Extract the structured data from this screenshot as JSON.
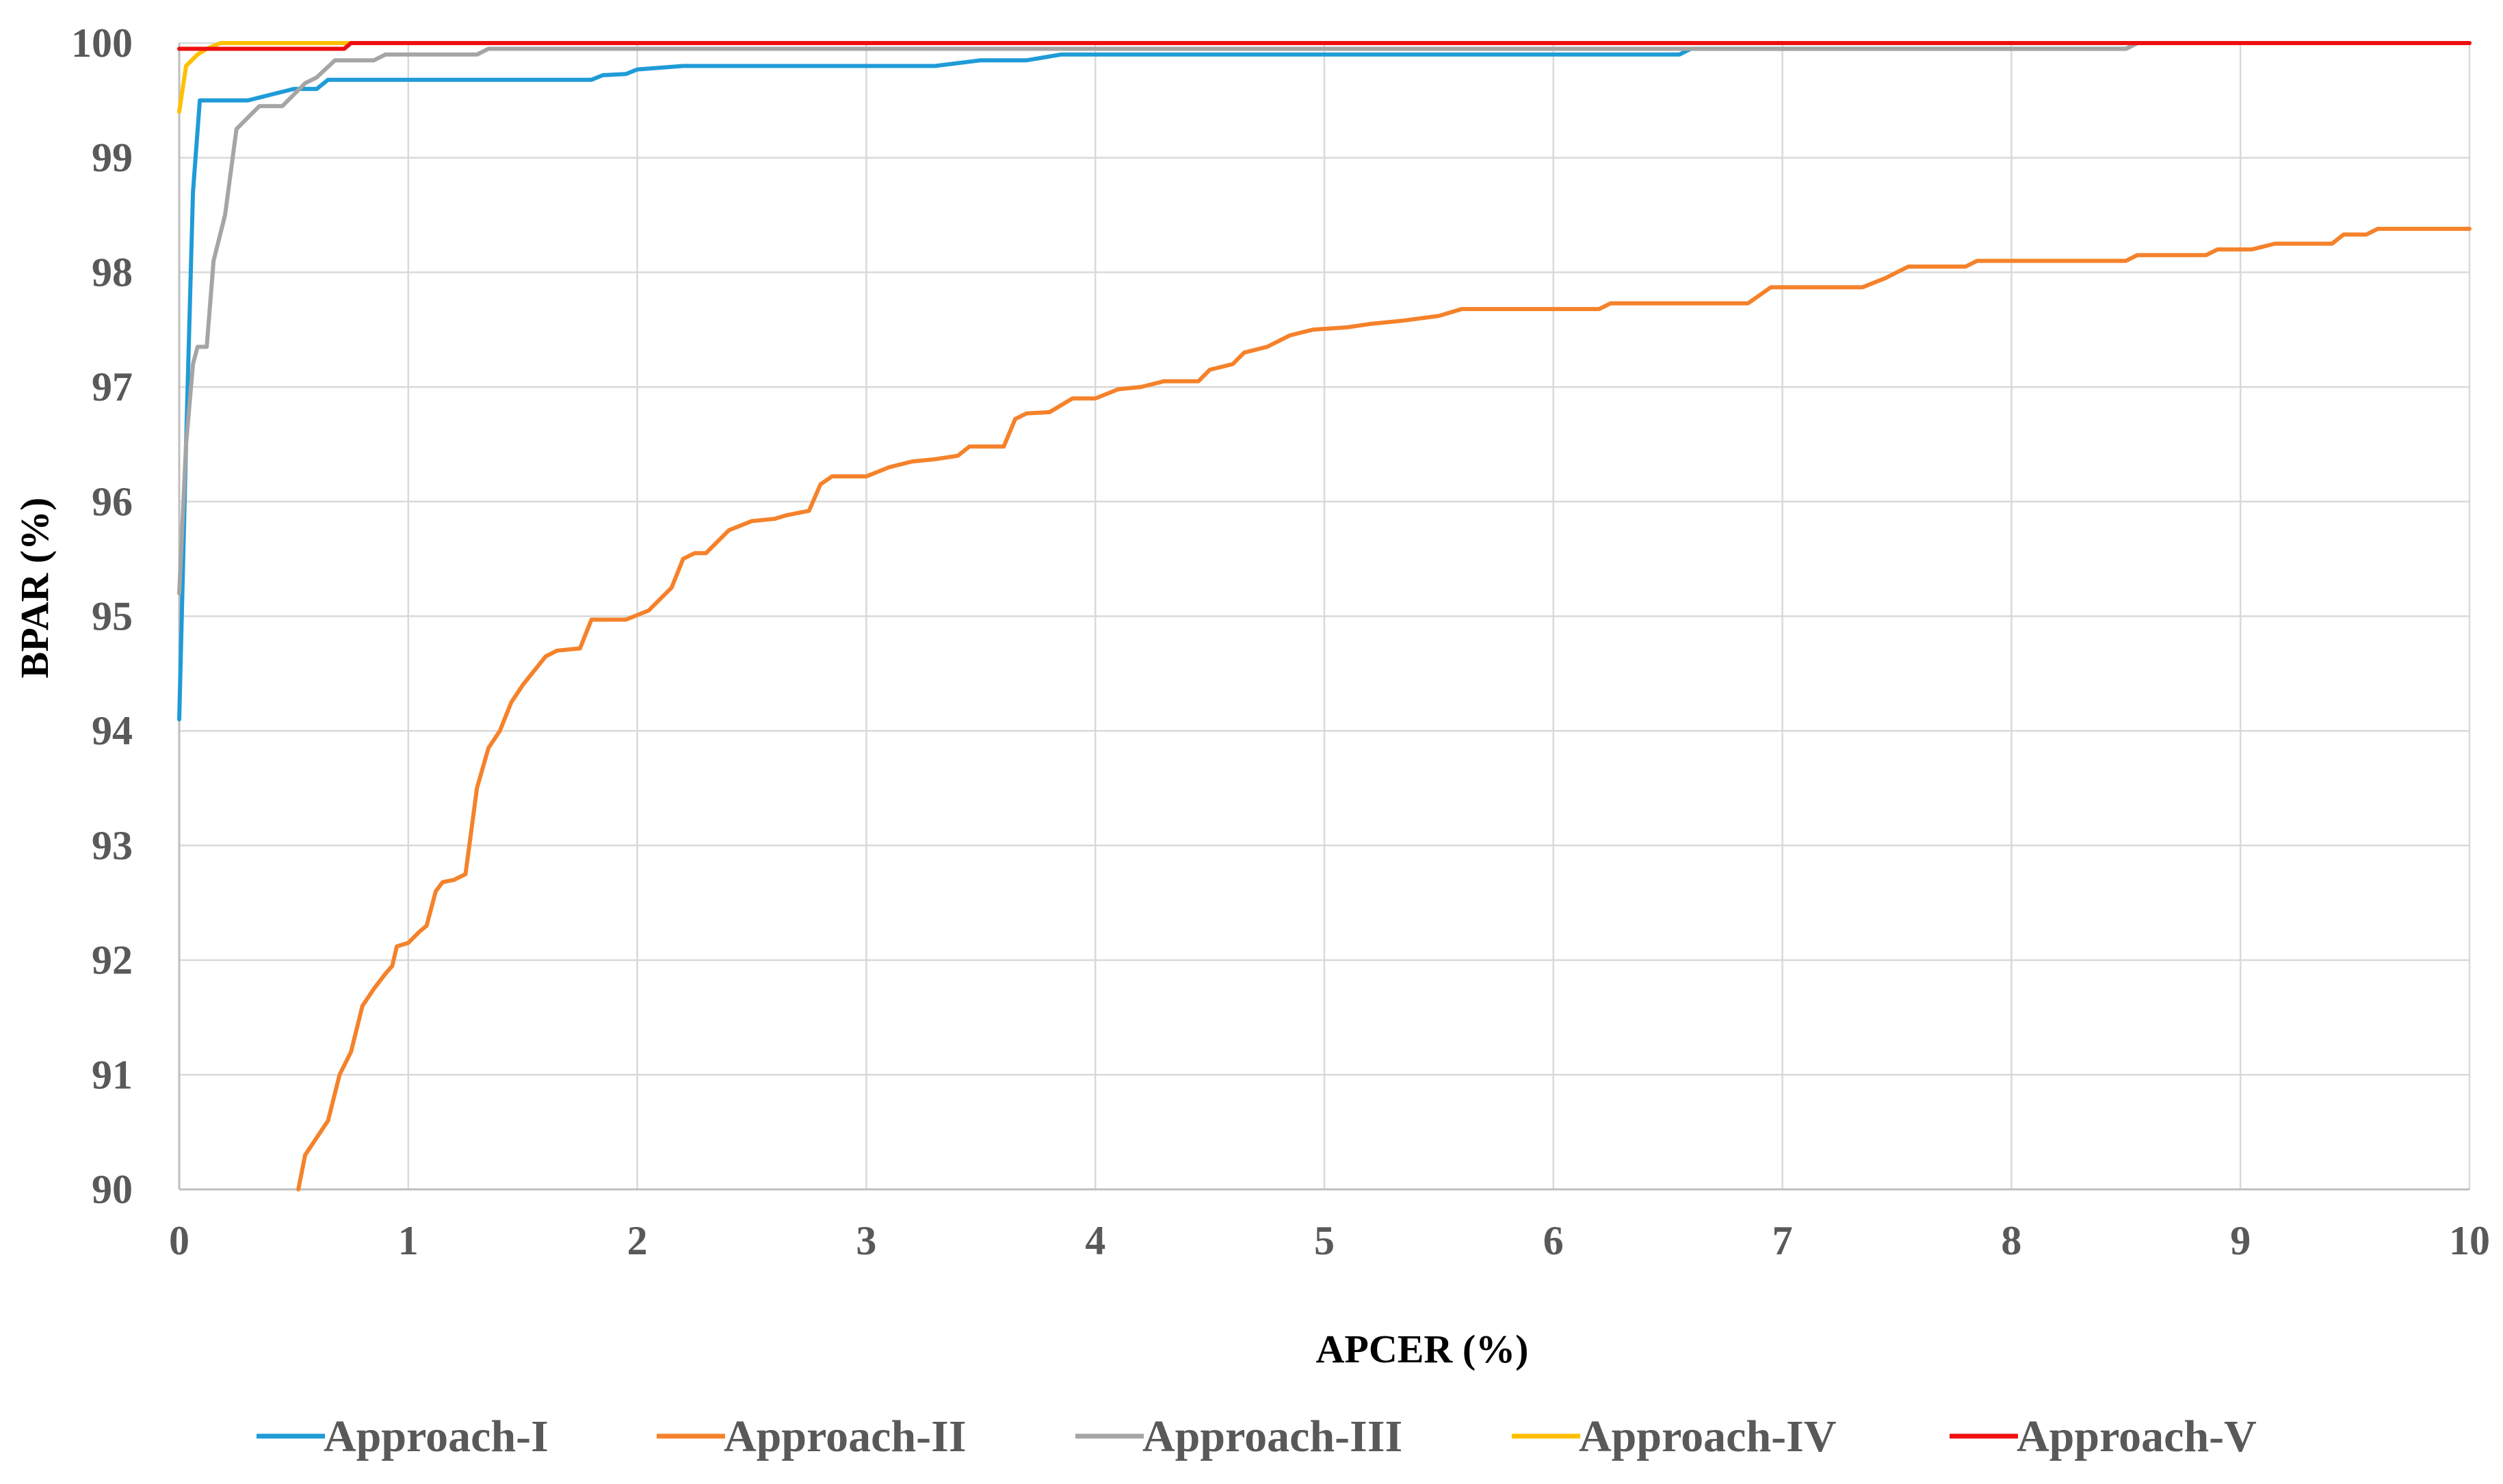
{
  "chart_data": {
    "type": "line",
    "title": "",
    "xlabel": "APCER (%)",
    "ylabel": "BPAR (%)",
    "xlim": [
      0,
      10
    ],
    "ylim": [
      90,
      100
    ],
    "x_ticks": [
      "0",
      "1",
      "2",
      "3",
      "4",
      "5",
      "6",
      "7",
      "8",
      "9",
      "10"
    ],
    "y_ticks": [
      "90",
      "91",
      "92",
      "93",
      "94",
      "95",
      "96",
      "97",
      "98",
      "99",
      "100"
    ],
    "grid": true,
    "legend_position": "bottom",
    "series": [
      {
        "name": "Approach-I",
        "color": "#1f9bd7",
        "points": [
          [
            0,
            94.1
          ],
          [
            0.03,
            96.5
          ],
          [
            0.06,
            98.7
          ],
          [
            0.09,
            99.5
          ],
          [
            0.3,
            99.5
          ],
          [
            0.4,
            99.55
          ],
          [
            0.5,
            99.6
          ],
          [
            0.6,
            99.6
          ],
          [
            0.65,
            99.68
          ],
          [
            1.8,
            99.68
          ],
          [
            1.85,
            99.72
          ],
          [
            1.95,
            99.73
          ],
          [
            2.0,
            99.77
          ],
          [
            2.2,
            99.8
          ],
          [
            3.3,
            99.8
          ],
          [
            3.5,
            99.85
          ],
          [
            3.7,
            99.85
          ],
          [
            3.85,
            99.9
          ],
          [
            6.55,
            99.9
          ],
          [
            6.6,
            99.95
          ],
          [
            8.5,
            99.95
          ],
          [
            8.55,
            100
          ],
          [
            10,
            100
          ]
        ]
      },
      {
        "name": "Approach-II",
        "color": "#f5822b",
        "points": [
          [
            0.52,
            90
          ],
          [
            0.55,
            90.3
          ],
          [
            0.65,
            90.6
          ],
          [
            0.7,
            91.0
          ],
          [
            0.75,
            91.2
          ],
          [
            0.8,
            91.6
          ],
          [
            0.85,
            91.75
          ],
          [
            0.9,
            91.88
          ],
          [
            0.93,
            91.95
          ],
          [
            0.95,
            92.12
          ],
          [
            1.0,
            92.15
          ],
          [
            1.05,
            92.25
          ],
          [
            1.08,
            92.3
          ],
          [
            1.12,
            92.6
          ],
          [
            1.15,
            92.68
          ],
          [
            1.2,
            92.7
          ],
          [
            1.25,
            92.75
          ],
          [
            1.3,
            93.5
          ],
          [
            1.35,
            93.85
          ],
          [
            1.4,
            94.0
          ],
          [
            1.45,
            94.25
          ],
          [
            1.5,
            94.4
          ],
          [
            1.6,
            94.65
          ],
          [
            1.65,
            94.7
          ],
          [
            1.75,
            94.72
          ],
          [
            1.8,
            94.97
          ],
          [
            1.95,
            94.97
          ],
          [
            2.05,
            95.05
          ],
          [
            2.15,
            95.25
          ],
          [
            2.2,
            95.5
          ],
          [
            2.25,
            95.55
          ],
          [
            2.3,
            95.55
          ],
          [
            2.4,
            95.75
          ],
          [
            2.5,
            95.83
          ],
          [
            2.6,
            95.85
          ],
          [
            2.65,
            95.88
          ],
          [
            2.75,
            95.92
          ],
          [
            2.8,
            96.15
          ],
          [
            2.85,
            96.22
          ],
          [
            3.0,
            96.22
          ],
          [
            3.1,
            96.3
          ],
          [
            3.2,
            96.35
          ],
          [
            3.3,
            96.37
          ],
          [
            3.4,
            96.4
          ],
          [
            3.45,
            96.48
          ],
          [
            3.6,
            96.48
          ],
          [
            3.65,
            96.72
          ],
          [
            3.7,
            96.77
          ],
          [
            3.8,
            96.78
          ],
          [
            3.9,
            96.9
          ],
          [
            4.0,
            96.9
          ],
          [
            4.1,
            96.98
          ],
          [
            4.2,
            97.0
          ],
          [
            4.3,
            97.05
          ],
          [
            4.45,
            97.05
          ],
          [
            4.5,
            97.15
          ],
          [
            4.6,
            97.2
          ],
          [
            4.65,
            97.3
          ],
          [
            4.75,
            97.35
          ],
          [
            4.85,
            97.45
          ],
          [
            4.95,
            97.5
          ],
          [
            5.1,
            97.52
          ],
          [
            5.2,
            97.55
          ],
          [
            5.35,
            97.58
          ],
          [
            5.5,
            97.62
          ],
          [
            5.6,
            97.68
          ],
          [
            6.2,
            97.68
          ],
          [
            6.25,
            97.73
          ],
          [
            6.85,
            97.73
          ],
          [
            6.95,
            97.87
          ],
          [
            7.35,
            97.87
          ],
          [
            7.45,
            97.95
          ],
          [
            7.55,
            98.05
          ],
          [
            7.8,
            98.05
          ],
          [
            7.85,
            98.1
          ],
          [
            8.5,
            98.1
          ],
          [
            8.55,
            98.15
          ],
          [
            8.85,
            98.15
          ],
          [
            8.9,
            98.2
          ],
          [
            9.05,
            98.2
          ],
          [
            9.15,
            98.25
          ],
          [
            9.4,
            98.25
          ],
          [
            9.45,
            98.33
          ],
          [
            9.55,
            98.33
          ],
          [
            9.6,
            98.38
          ],
          [
            10,
            98.38
          ]
        ]
      },
      {
        "name": "Approach-III",
        "color": "#a5a5a5",
        "points": [
          [
            0,
            95.2
          ],
          [
            0.03,
            96.5
          ],
          [
            0.06,
            97.2
          ],
          [
            0.08,
            97.35
          ],
          [
            0.12,
            97.35
          ],
          [
            0.15,
            98.1
          ],
          [
            0.2,
            98.5
          ],
          [
            0.25,
            99.25
          ],
          [
            0.3,
            99.35
          ],
          [
            0.35,
            99.45
          ],
          [
            0.45,
            99.45
          ],
          [
            0.5,
            99.55
          ],
          [
            0.55,
            99.65
          ],
          [
            0.6,
            99.7
          ],
          [
            0.68,
            99.85
          ],
          [
            0.85,
            99.85
          ],
          [
            0.9,
            99.9
          ],
          [
            1.3,
            99.9
          ],
          [
            1.35,
            99.95
          ],
          [
            8.5,
            99.95
          ],
          [
            8.55,
            100
          ],
          [
            10,
            100
          ]
        ]
      },
      {
        "name": "Approach-IV",
        "color": "#ffc000",
        "points": [
          [
            0,
            99.4
          ],
          [
            0.03,
            99.8
          ],
          [
            0.08,
            99.9
          ],
          [
            0.12,
            99.95
          ],
          [
            0.18,
            100
          ],
          [
            10,
            100
          ]
        ]
      },
      {
        "name": "Approach-V",
        "color": "#ee1010",
        "points": [
          [
            0,
            99.95
          ],
          [
            0.72,
            99.95
          ],
          [
            0.75,
            100
          ],
          [
            10,
            100
          ]
        ]
      }
    ]
  }
}
